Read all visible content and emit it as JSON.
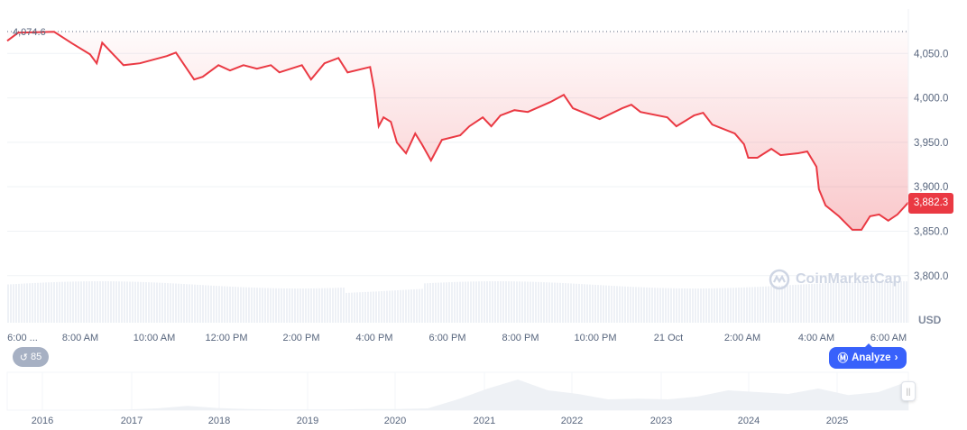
{
  "chart_data": {
    "type": "line",
    "unit_label": "USD",
    "colors": {
      "line": "#ea3943",
      "fill": "#ea3943",
      "grid": "#eff2f5",
      "volume": "#eef1f6",
      "navigator": "#eef1f5",
      "analyze": "#3861fb"
    },
    "ylim": [
      3747,
      4100
    ],
    "yticks": [
      "3,800.0",
      "3,850.0",
      "3,900.0",
      "3,950.0",
      "4,000.0",
      "4,050.0"
    ],
    "ytick_values": [
      3800,
      3850,
      3900,
      3950,
      4000,
      4050
    ],
    "xticks": [
      "6:00 ...",
      "8:00 AM",
      "10:00 AM",
      "12:00 PM",
      "2:00 PM",
      "4:00 PM",
      "6:00 PM",
      "8:00 PM",
      "10:00 PM",
      "21 Oct",
      "2:00 AM",
      "4:00 AM",
      "6:00 AM"
    ],
    "high_label": "4,074.6",
    "high_value": 4074.6,
    "current_label": "3,882.3",
    "current_value": 3882.3,
    "grid": true,
    "series": [
      {
        "points": [
          [
            "20 Oct 06:00",
            4064.2
          ],
          [
            "20 Oct 06:18",
            4073.3
          ],
          [
            "20 Oct 07:17",
            4074.3
          ],
          [
            "20 Oct 07:47",
            4061.1
          ],
          [
            "20 Oct 08:16",
            4049.0
          ],
          [
            "20 Oct 08:27",
            4038.9
          ],
          [
            "20 Oct 08:36",
            4062.1
          ],
          [
            "20 Oct 09:11",
            4036.8
          ],
          [
            "20 Oct 09:38",
            4038.9
          ],
          [
            "20 Oct 10:22",
            4047.0
          ],
          [
            "20 Oct 10:37",
            4051.0
          ],
          [
            "20 Oct 11:07",
            4020.7
          ],
          [
            "20 Oct 11:21",
            4023.7
          ],
          [
            "20 Oct 11:47",
            4036.8
          ],
          [
            "20 Oct 12:06",
            4030.8
          ],
          [
            "20 Oct 12:28",
            4036.8
          ],
          [
            "20 Oct 12:50",
            4032.8
          ],
          [
            "20 Oct 13:13",
            4036.8
          ],
          [
            "20 Oct 13:27",
            4028.7
          ],
          [
            "20 Oct 14:04",
            4036.8
          ],
          [
            "20 Oct 14:19",
            4020.7
          ],
          [
            "20 Oct 14:41",
            4038.9
          ],
          [
            "20 Oct 15:04",
            4044.9
          ],
          [
            "20 Oct 15:19",
            4028.7
          ],
          [
            "20 Oct 15:56",
            4034.8
          ],
          [
            "20 Oct 16:03",
            4008.5
          ],
          [
            "20 Oct 16:10",
            3968.0
          ],
          [
            "20 Oct 16:18",
            3978.1
          ],
          [
            "20 Oct 16:30",
            3973.1
          ],
          [
            "20 Oct 16:40",
            3949.8
          ],
          [
            "20 Oct 16:55",
            3937.7
          ],
          [
            "20 Oct 17:10",
            3959.9
          ],
          [
            "20 Oct 17:21",
            3947.8
          ],
          [
            "20 Oct 17:36",
            3929.6
          ],
          [
            "20 Oct 17:54",
            3952.8
          ],
          [
            "20 Oct 18:24",
            3957.9
          ],
          [
            "20 Oct 18:39",
            3968.0
          ],
          [
            "20 Oct 19:01",
            3978.1
          ],
          [
            "20 Oct 19:15",
            3968.0
          ],
          [
            "20 Oct 19:30",
            3980.2
          ],
          [
            "20 Oct 19:53",
            3986.2
          ],
          [
            "20 Oct 20:15",
            3984.2
          ],
          [
            "20 Oct 20:52",
            3995.3
          ],
          [
            "20 Oct 21:14",
            4003.4
          ],
          [
            "20 Oct 21:29",
            3988.3
          ],
          [
            "20 Oct 22:13",
            3976.1
          ],
          [
            "20 Oct 22:50",
            3988.3
          ],
          [
            "20 Oct 23:05",
            3992.3
          ],
          [
            "20 Oct 23:20",
            3984.2
          ],
          [
            "21 Oct 00:04",
            3978.1
          ],
          [
            "21 Oct 00:19",
            3968.0
          ],
          [
            "21 Oct 00:48",
            3980.2
          ],
          [
            "21 Oct 01:03",
            3983.2
          ],
          [
            "21 Oct 01:18",
            3970.0
          ],
          [
            "21 Oct 01:55",
            3959.9
          ],
          [
            "21 Oct 02:10",
            3947.8
          ],
          [
            "21 Oct 02:17",
            3932.6
          ],
          [
            "21 Oct 02:32",
            3932.6
          ],
          [
            "21 Oct 02:55",
            3942.7
          ],
          [
            "21 Oct 03:10",
            3935.6
          ],
          [
            "21 Oct 03:39",
            3937.7
          ],
          [
            "21 Oct 03:54",
            3939.7
          ],
          [
            "21 Oct 04:09",
            3922.5
          ],
          [
            "21 Oct 04:13",
            3897.2
          ],
          [
            "21 Oct 04:24",
            3879.0
          ],
          [
            "21 Oct 04:46",
            3866.8
          ],
          [
            "21 Oct 05:08",
            3851.6
          ],
          [
            "21 Oct 05:23",
            3851.6
          ],
          [
            "21 Oct 05:37",
            3866.8
          ],
          [
            "21 Oct 05:52",
            3868.8
          ],
          [
            "21 Oct 06:07",
            3861.8
          ],
          [
            "21 Oct 06:22",
            3868.8
          ],
          [
            "21 Oct 06:40",
            3882.3
          ]
        ]
      }
    ],
    "navigator": {
      "years": [
        "2016",
        "2017",
        "2018",
        "2019",
        "2020",
        "2021",
        "2022",
        "2023",
        "2024",
        "2025"
      ],
      "values": [
        0,
        0,
        0,
        1,
        2,
        5,
        12,
        6,
        3,
        2,
        2,
        2,
        3,
        3,
        5,
        30,
        60,
        85,
        55,
        45,
        30,
        32,
        30,
        38,
        55,
        50,
        45,
        60,
        42,
        50,
        80
      ]
    }
  },
  "controls": {
    "history_count": "85",
    "analyze_label": "Analyze",
    "watermark": "CoinMarketCap"
  }
}
